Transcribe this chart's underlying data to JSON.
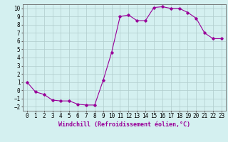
{
  "x": [
    0,
    1,
    2,
    3,
    4,
    5,
    6,
    7,
    8,
    9,
    10,
    11,
    12,
    13,
    14,
    15,
    16,
    17,
    18,
    19,
    20,
    21,
    22,
    23
  ],
  "y": [
    1.0,
    -0.2,
    -0.5,
    -1.2,
    -1.3,
    -1.3,
    -1.7,
    -1.8,
    -1.8,
    1.2,
    4.6,
    9.0,
    9.2,
    8.5,
    8.5,
    10.1,
    10.2,
    10.0,
    10.0,
    9.5,
    8.8,
    7.0,
    6.3,
    6.3
  ],
  "line_color": "#990099",
  "marker": "D",
  "markersize": 1.8,
  "linewidth": 0.8,
  "xlabel": "Windchill (Refroidissement éolien,°C)",
  "xlabel_fontsize": 6,
  "tick_fontsize": 5.5,
  "xlim": [
    -0.5,
    23.5
  ],
  "ylim": [
    -2.5,
    10.5
  ],
  "yticks": [
    -2,
    -1,
    0,
    1,
    2,
    3,
    4,
    5,
    6,
    7,
    8,
    9,
    10
  ],
  "xticks": [
    0,
    1,
    2,
    3,
    4,
    5,
    6,
    7,
    8,
    9,
    10,
    11,
    12,
    13,
    14,
    15,
    16,
    17,
    18,
    19,
    20,
    21,
    22,
    23
  ],
  "bg_color": "#d4f0f0",
  "grid_color": "#b0cccc",
  "spine_color": "#666666"
}
